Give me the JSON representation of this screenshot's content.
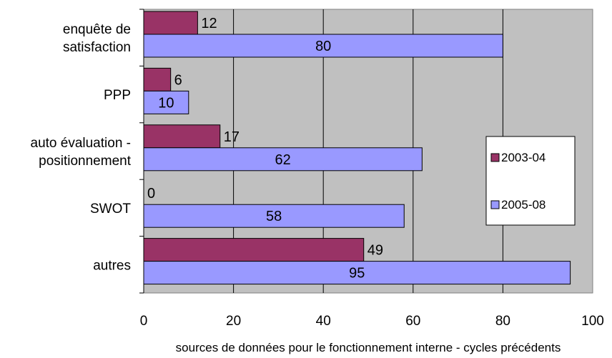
{
  "chart_data": {
    "type": "bar",
    "orientation": "horizontal",
    "title": "",
    "xlabel": "sources de données pour le fonctionnement interne - cycles précédents",
    "ylabel": "",
    "xlim": [
      0,
      100
    ],
    "xticks": [
      0,
      20,
      40,
      60,
      80,
      100
    ],
    "grid": true,
    "legend_position": "right",
    "plot_background": "#c0c0c0",
    "categories": [
      [
        "enquête de",
        "satisfaction"
      ],
      [
        "PPP"
      ],
      [
        "auto évaluation -",
        "positionnement"
      ],
      [
        "SWOT"
      ],
      [
        "autres"
      ]
    ],
    "series": [
      {
        "name": "2003-04",
        "color": "#993366",
        "values": [
          12,
          6,
          17,
          0,
          49
        ]
      },
      {
        "name": "2005-08",
        "color": "#9999ff",
        "values": [
          80,
          10,
          62,
          58,
          95
        ]
      }
    ]
  }
}
